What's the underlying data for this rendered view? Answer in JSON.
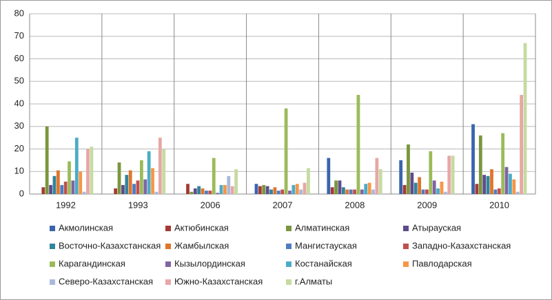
{
  "chart_data": {
    "type": "bar",
    "categories": [
      "1992",
      "1993",
      "2006",
      "2007",
      "2008",
      "2009",
      "2010"
    ],
    "ylim": [
      0,
      80
    ],
    "yticks": [
      0,
      10,
      20,
      30,
      40,
      50,
      60,
      70,
      80
    ],
    "grid": true,
    "legend": "bottom",
    "series": [
      {
        "name": "Акмолинская",
        "color": "#3a64ad",
        "values": [
          0,
          0,
          0,
          4.5,
          16,
          15,
          31
        ]
      },
      {
        "name": "Актюбинская",
        "color": "#a33a35",
        "values": [
          3,
          2.5,
          4.5,
          3.5,
          3,
          4,
          4.5
        ]
      },
      {
        "name": "Алматинская",
        "color": "#7a963e",
        "values": [
          30,
          14,
          1,
          4,
          6,
          22,
          26
        ]
      },
      {
        "name": "Атырауская",
        "color": "#5f4b8b",
        "values": [
          4,
          4,
          2.5,
          3.5,
          6,
          9.5,
          8.5
        ]
      },
      {
        "name": "Восточно-Казахстанская",
        "color": "#31849b",
        "values": [
          8,
          8.5,
          3.5,
          2,
          3,
          5,
          8
        ]
      },
      {
        "name": "Жамбылская",
        "color": "#e0752a",
        "values": [
          10.5,
          10.5,
          2.5,
          3,
          2,
          7.5,
          11
        ]
      },
      {
        "name": "Мангистауская",
        "color": "#4f7cc0",
        "values": [
          4,
          4.5,
          1.5,
          1.5,
          2,
          2,
          2
        ]
      },
      {
        "name": "Западно-Казахстанская",
        "color": "#c0504d",
        "values": [
          5.5,
          6,
          1.5,
          2,
          2,
          2,
          2.5
        ]
      },
      {
        "name": "Карагандинская",
        "color": "#9bbb59",
        "values": [
          14.5,
          15,
          16,
          38,
          44,
          19,
          27
        ]
      },
      {
        "name": "Кызылординская",
        "color": "#8064a2",
        "values": [
          6,
          6.5,
          0.5,
          1.5,
          2,
          6,
          12
        ]
      },
      {
        "name": "Костанайская",
        "color": "#4bacc6",
        "values": [
          25,
          19,
          4,
          4,
          4.5,
          2.5,
          9
        ]
      },
      {
        "name": "Павлодарская",
        "color": "#f79646",
        "values": [
          10,
          11.5,
          4,
          4.5,
          5,
          5.5,
          6.5
        ]
      },
      {
        "name": "Северо-Казахстанская",
        "color": "#a9b9dc",
        "values": [
          1,
          1,
          8,
          2,
          2,
          1,
          1
        ]
      },
      {
        "name": "Южно-Казахстанская",
        "color": "#e6a7a5",
        "values": [
          20,
          25,
          3.5,
          5,
          16,
          17,
          44
        ]
      },
      {
        "name": "г.Алматы",
        "color": "#c6dba0",
        "values": [
          21,
          20,
          11,
          11.5,
          11,
          17,
          67
        ]
      }
    ]
  }
}
